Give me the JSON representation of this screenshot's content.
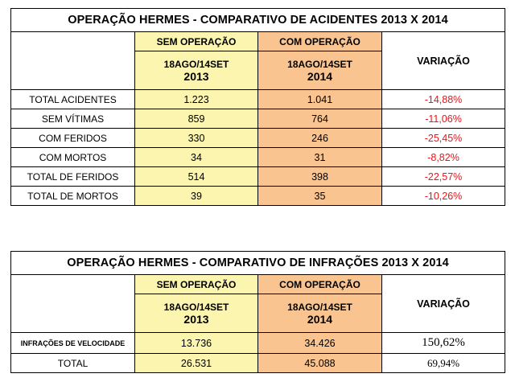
{
  "accidents": {
    "title": "OPERAÇÃO HERMES - COMPARATIVO DE ACIDENTES 2013 X 2014",
    "col_without": "SEM OPERAÇÃO",
    "col_with": "COM OPERAÇÃO",
    "period_without": "18AGO/14SET",
    "year_without": "2013",
    "period_with": "18AGO/14SET",
    "year_with": "2014",
    "variation_header": "VARIAÇÃO",
    "rows": [
      {
        "label": "TOTAL ACIDENTES",
        "v2013": "1.223",
        "v2014": "1.041",
        "variation": "-14,88%"
      },
      {
        "label": "SEM VÍTIMAS",
        "v2013": "859",
        "v2014": "764",
        "variation": "-11,06%"
      },
      {
        "label": "COM FERIDOS",
        "v2013": "330",
        "v2014": "246",
        "variation": "-25,45%"
      },
      {
        "label": "COM MORTOS",
        "v2013": "34",
        "v2014": "31",
        "variation": "-8,82%"
      },
      {
        "label": "TOTAL DE FERIDOS",
        "v2013": "514",
        "v2014": "398",
        "variation": "-22,57%"
      },
      {
        "label": "TOTAL DE MORTOS",
        "v2013": "39",
        "v2014": "35",
        "variation": "-10,26%"
      }
    ]
  },
  "infractions": {
    "title": "OPERAÇÃO HERMES - COMPARATIVO DE INFRAÇÕES 2013 X 2014",
    "col_without": "SEM OPERAÇÃO",
    "col_with": "COM OPERAÇÃO",
    "period_without": "18AGO/14SET",
    "year_without": "2013",
    "period_with": "18AGO/14SET",
    "year_with": "2014",
    "variation_header": "VARIAÇÃO",
    "rows": [
      {
        "label": "INFRAÇÕES DE VELOCIDADE",
        "v2013": "13.736",
        "v2014": "34.426",
        "variation": "150,62%"
      },
      {
        "label": "TOTAL",
        "v2013": "26.531",
        "v2014": "45.088",
        "variation": "69,94%"
      }
    ]
  },
  "colors": {
    "without_fill": "#fbf5b0",
    "with_fill": "#f9c490",
    "negative_variation": "#e8141b"
  }
}
